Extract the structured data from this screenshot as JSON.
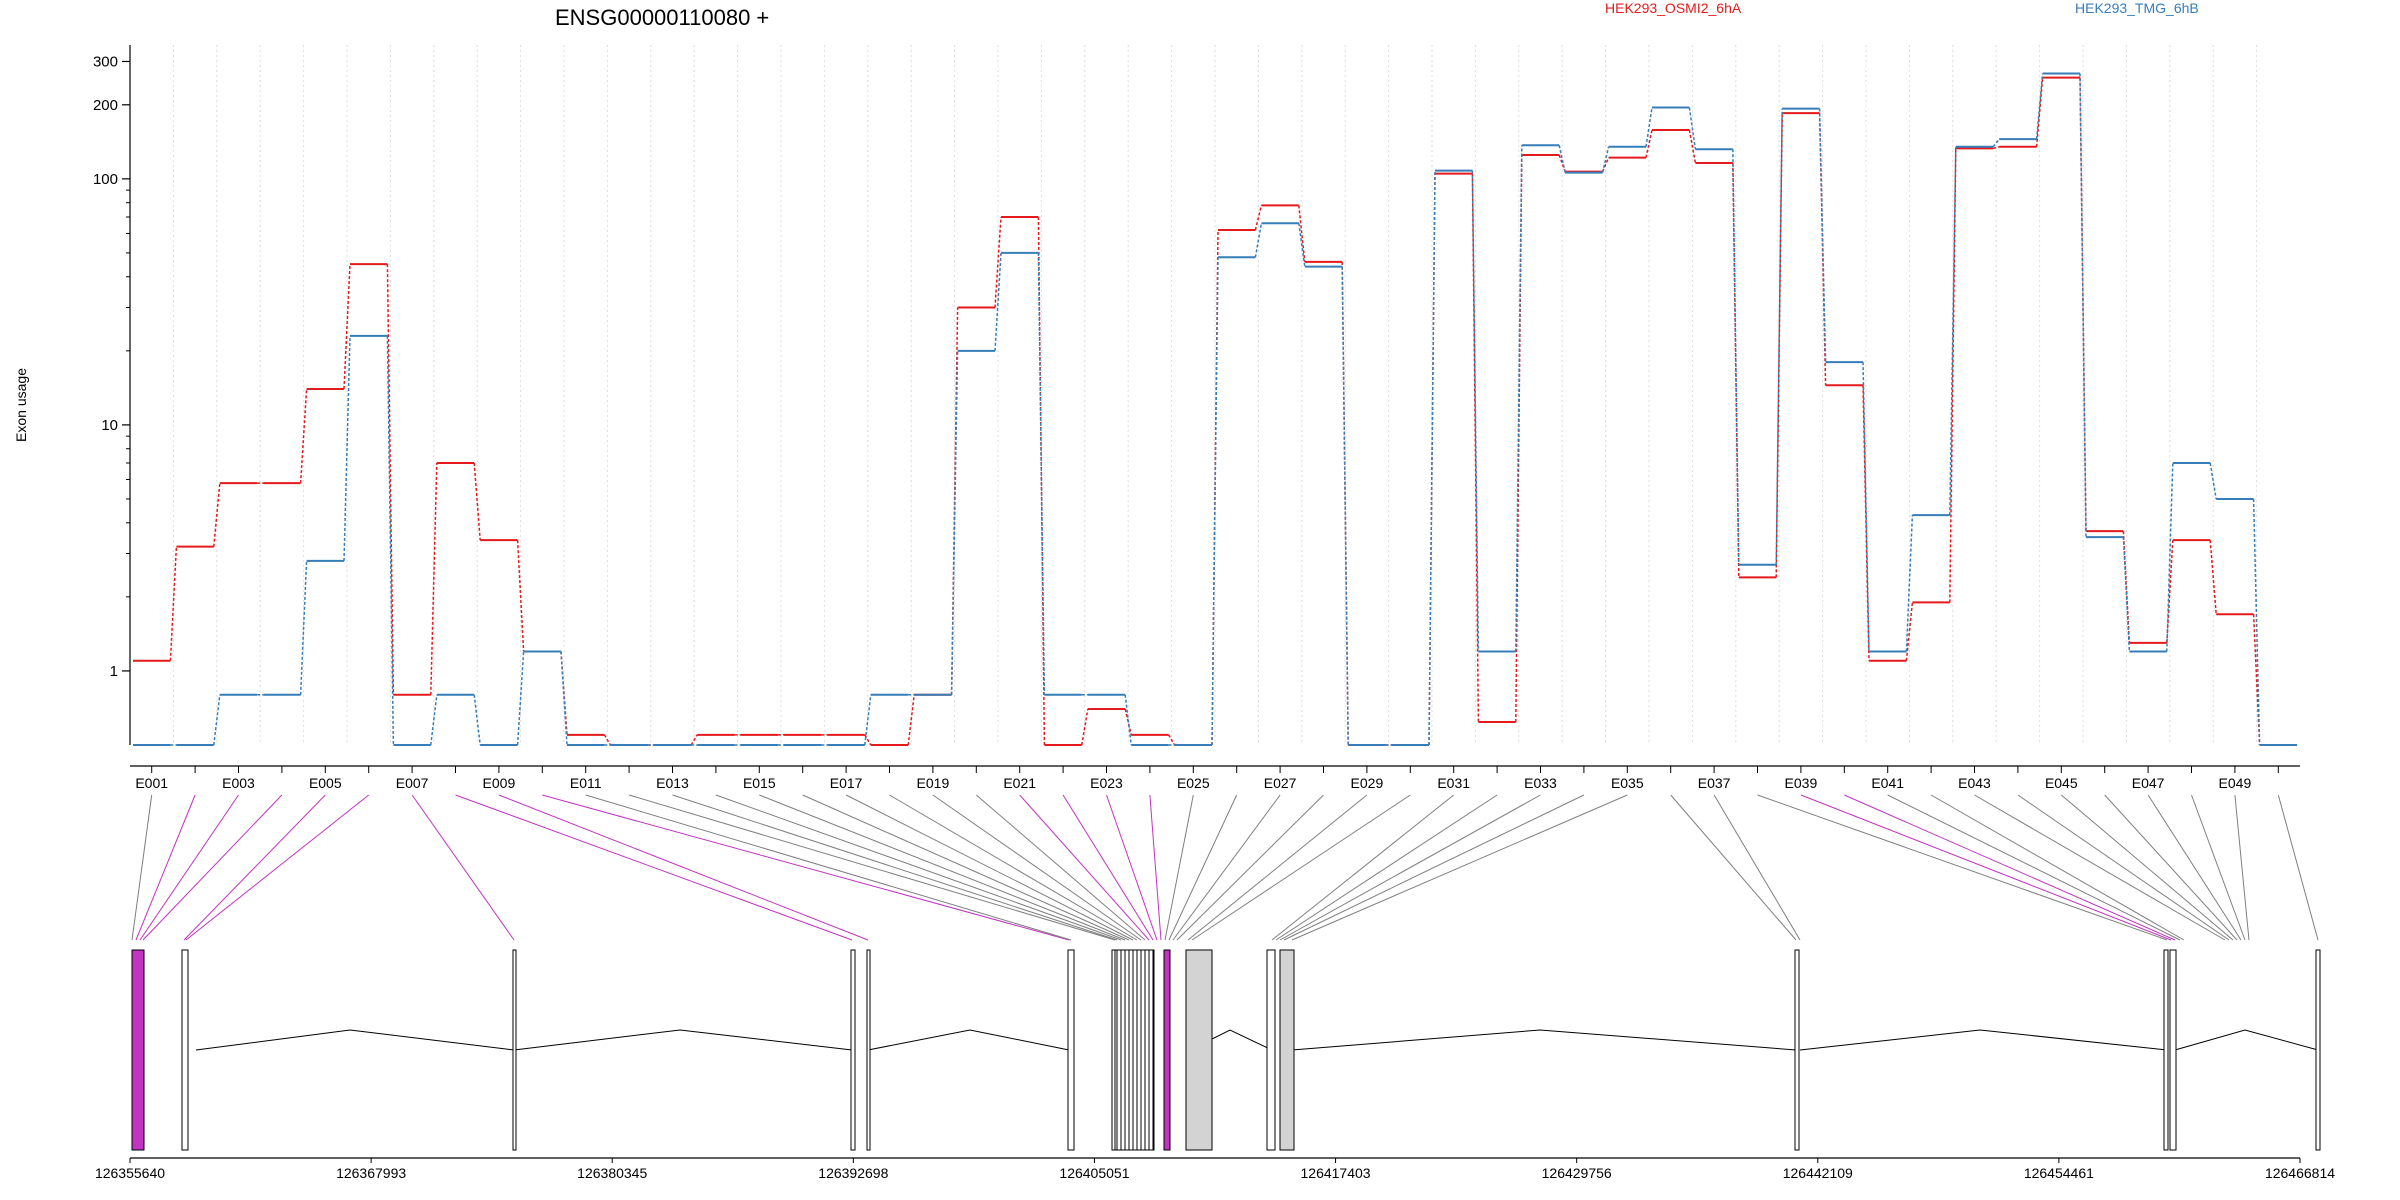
{
  "chart_data": {
    "type": "line",
    "title": "ENSG00000110080 +",
    "ylabel": "Exon usage",
    "y_scale": "log",
    "ylim": [
      0.5,
      350
    ],
    "y_ticks": [
      1,
      10,
      100,
      200,
      300
    ],
    "y_tick_labels": [
      "1",
      "10",
      "100",
      "200",
      "300"
    ],
    "grid": "vertical dotted lines at exon bin boundaries",
    "legend_placement": "top",
    "categories": [
      "E001",
      "E002",
      "E003",
      "E004",
      "E005",
      "E006",
      "E007",
      "E008",
      "E009",
      "E010",
      "E011",
      "E012",
      "E013",
      "E014",
      "E015",
      "E016",
      "E017",
      "E018",
      "E019",
      "E020",
      "E021",
      "E022",
      "E023",
      "E024",
      "E025",
      "E026",
      "E027",
      "E028",
      "E029",
      "E030",
      "E031",
      "E032",
      "E033",
      "E034",
      "E035",
      "E036",
      "E037",
      "E038",
      "E039",
      "E040",
      "E041",
      "E042",
      "E043",
      "E044",
      "E045",
      "E046",
      "E047",
      "E048",
      "E049",
      "E050"
    ],
    "x_tick_labels": [
      "E001",
      "E003",
      "E005",
      "E007",
      "E009",
      "E011",
      "E013",
      "E015",
      "E017",
      "E019",
      "E021",
      "E023",
      "E025",
      "E027",
      "E029",
      "E031",
      "E033",
      "E035",
      "E037",
      "E039",
      "E041",
      "E043",
      "E045",
      "E047",
      "E049"
    ],
    "series": [
      {
        "name": "HEK293_OSMI2_6hA",
        "color": "#e41a1c",
        "values": [
          1.1,
          3.2,
          5.8,
          5.8,
          14,
          45,
          0.8,
          7,
          3.4,
          1.2,
          0.55,
          0.5,
          0.5,
          0.55,
          0.55,
          0.55,
          0.55,
          0.5,
          0.8,
          30,
          70,
          0.5,
          0.7,
          0.55,
          0.5,
          62,
          78,
          46,
          0.5,
          0.5,
          105,
          0.62,
          125,
          107,
          122,
          158,
          116,
          2.4,
          185,
          14.5,
          1.1,
          1.9,
          133,
          135,
          258,
          3.7,
          1.3,
          3.4,
          1.7,
          0.5
        ]
      },
      {
        "name": "HEK293_TMG_6hB",
        "color": "#377eb8",
        "values": [
          0.5,
          0.5,
          0.8,
          0.8,
          2.8,
          23,
          0.5,
          0.8,
          0.5,
          1.2,
          0.5,
          0.5,
          0.5,
          0.5,
          0.5,
          0.5,
          0.5,
          0.8,
          0.8,
          20,
          50,
          0.8,
          0.8,
          0.5,
          0.5,
          48,
          66,
          44,
          0.5,
          0.5,
          108,
          1.2,
          137,
          106,
          135,
          195,
          132,
          2.7,
          193,
          18,
          1.2,
          4.3,
          135,
          145,
          268,
          3.5,
          1.2,
          7,
          5,
          0.5
        ]
      }
    ],
    "gene_model": {
      "coordinate_labels": [
        "126355640",
        "126367993",
        "126380345",
        "126392698",
        "126405051",
        "126417403",
        "126429756",
        "126442109",
        "126454461",
        "126466814"
      ],
      "coordinate_range": [
        126355640,
        126466814
      ],
      "highlight_color": "#c233c2",
      "filled_exon_color": "#d3d3d3"
    }
  }
}
